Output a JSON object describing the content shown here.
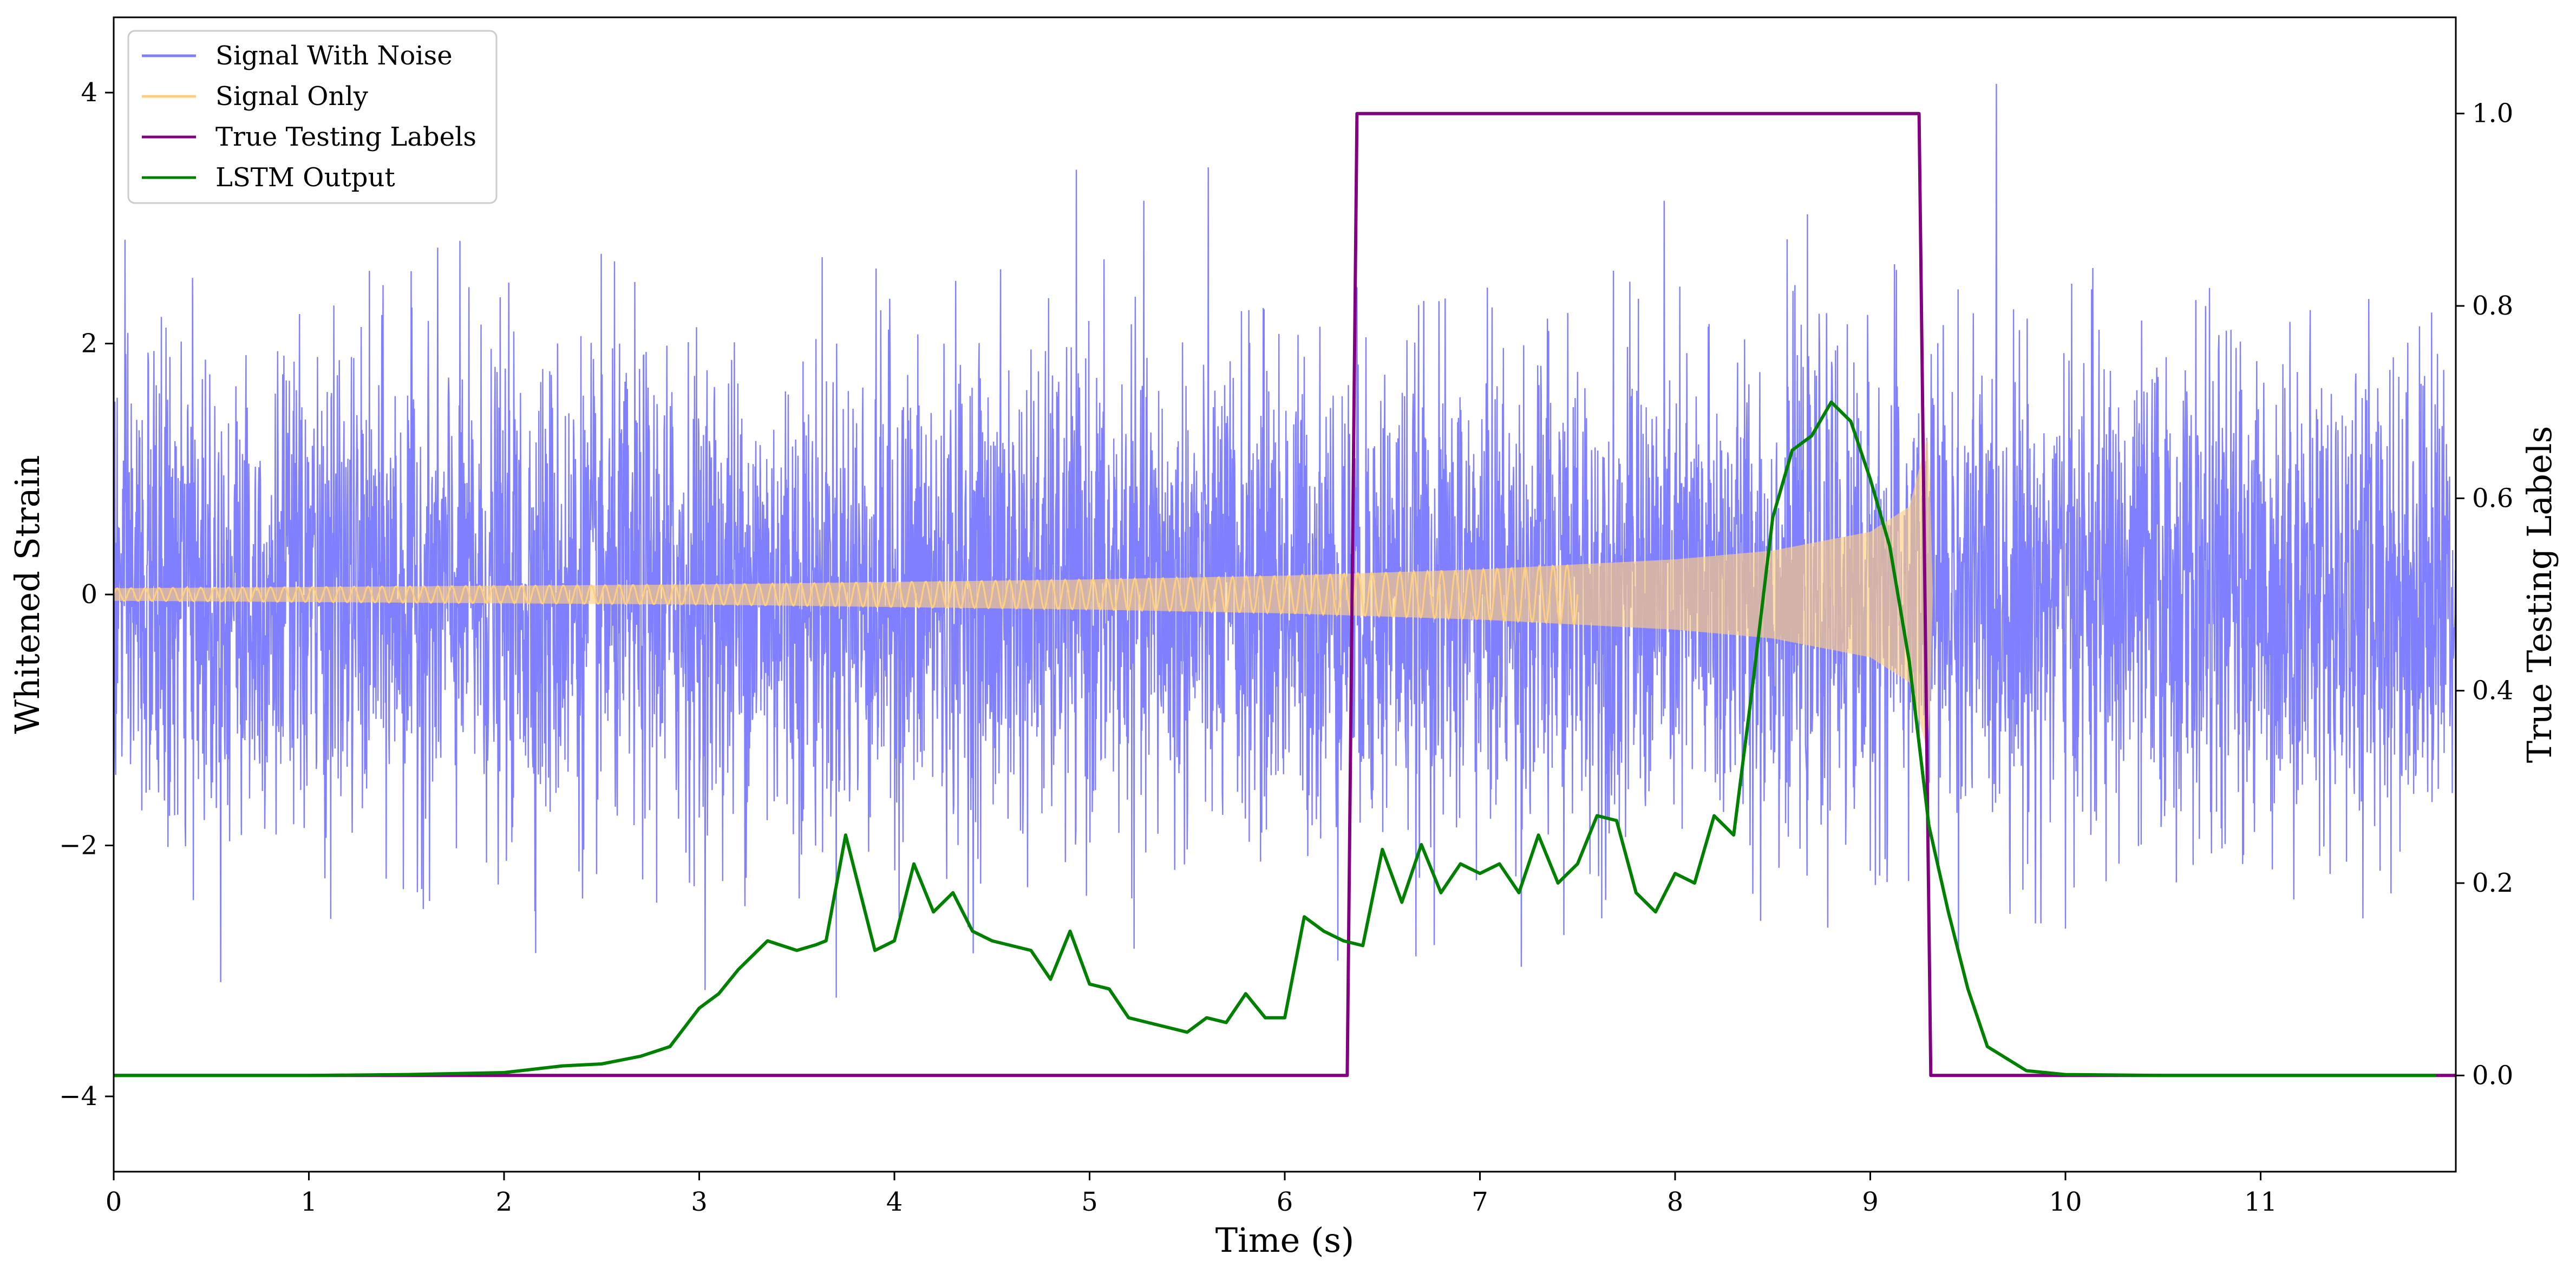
{
  "chart_data": {
    "type": "line",
    "xlabel": "Time (s)",
    "ylabel": "Whitened Strain",
    "ylabel_right": "True Testing Labels",
    "xlim": [
      0,
      12
    ],
    "ylim": [
      -4.6,
      4.6
    ],
    "ylim_right": [
      -0.1,
      1.1
    ],
    "x_ticks": [
      "0",
      "1",
      "2",
      "3",
      "4",
      "5",
      "6",
      "7",
      "8",
      "9",
      "10",
      "11"
    ],
    "y_ticks": [
      "−4",
      "−2",
      "0",
      "2",
      "4"
    ],
    "y_ticks_right": [
      "0.0",
      "0.2",
      "0.4",
      "0.6",
      "0.8",
      "1.0"
    ],
    "legend_position": "top-left",
    "series": [
      {
        "name": "Signal With Noise",
        "color": "#7f7fff",
        "axis": "left",
        "style": "dense noise, approximately gaussian with standard deviation about 1 around a zero mean, spikes reaching about 4.3"
      },
      {
        "name": "Signal Only",
        "color": "#ffcf80",
        "axis": "left",
        "style": "chirp oscillation with amplitude growing from about 0.05 at 0 s to about 1.3 at 9.3 s, then flat at 0",
        "envelope": {
          "x": [
            0,
            1,
            2,
            3,
            4,
            5,
            6,
            7,
            8,
            8.5,
            9,
            9.2,
            9.3,
            9.32,
            12
          ],
          "y": [
            0.05,
            0.06,
            0.07,
            0.08,
            0.1,
            0.12,
            0.15,
            0.2,
            0.28,
            0.35,
            0.5,
            0.7,
            1.3,
            0.0,
            0.0
          ]
        }
      },
      {
        "name": "True Testing Labels",
        "color": "#800080",
        "axis": "right",
        "x": [
          0,
          6.32,
          6.37,
          9.25,
          9.31,
          12
        ],
        "y": [
          0,
          0,
          1,
          1,
          0,
          0
        ]
      },
      {
        "name": "LSTM Output",
        "color": "#008000",
        "axis": "right",
        "x": [
          0,
          1,
          1.5,
          2,
          2.3,
          2.5,
          2.7,
          2.85,
          3,
          3.1,
          3.2,
          3.35,
          3.5,
          3.6,
          3.65,
          3.75,
          3.9,
          4,
          4.1,
          4.2,
          4.3,
          4.4,
          4.5,
          4.6,
          4.7,
          4.8,
          4.9,
          5,
          5.1,
          5.2,
          5.3,
          5.4,
          5.5,
          5.6,
          5.7,
          5.8,
          5.9,
          6,
          6.1,
          6.2,
          6.3,
          6.4,
          6.5,
          6.6,
          6.7,
          6.8,
          6.9,
          7,
          7.1,
          7.2,
          7.3,
          7.4,
          7.5,
          7.6,
          7.7,
          7.8,
          7.9,
          8,
          8.1,
          8.2,
          8.3,
          8.4,
          8.5,
          8.6,
          8.7,
          8.8,
          8.9,
          9,
          9.1,
          9.2,
          9.3,
          9.4,
          9.5,
          9.6,
          9.8,
          10,
          10.5,
          11,
          11.9
        ],
        "y": [
          0,
          0,
          0.001,
          0.003,
          0.01,
          0.012,
          0.02,
          0.03,
          0.07,
          0.085,
          0.11,
          0.14,
          0.13,
          0.136,
          0.14,
          0.25,
          0.13,
          0.14,
          0.22,
          0.17,
          0.19,
          0.15,
          0.14,
          0.135,
          0.13,
          0.1,
          0.15,
          0.095,
          0.09,
          0.06,
          0.055,
          0.05,
          0.045,
          0.06,
          0.055,
          0.085,
          0.06,
          0.06,
          0.165,
          0.15,
          0.14,
          0.135,
          0.235,
          0.18,
          0.24,
          0.19,
          0.22,
          0.21,
          0.22,
          0.19,
          0.25,
          0.2,
          0.22,
          0.27,
          0.265,
          0.19,
          0.17,
          0.21,
          0.2,
          0.27,
          0.25,
          0.41,
          0.58,
          0.65,
          0.665,
          0.7,
          0.68,
          0.62,
          0.55,
          0.43,
          0.26,
          0.17,
          0.09,
          0.03,
          0.005,
          0.001,
          0,
          0,
          0
        ]
      }
    ]
  }
}
